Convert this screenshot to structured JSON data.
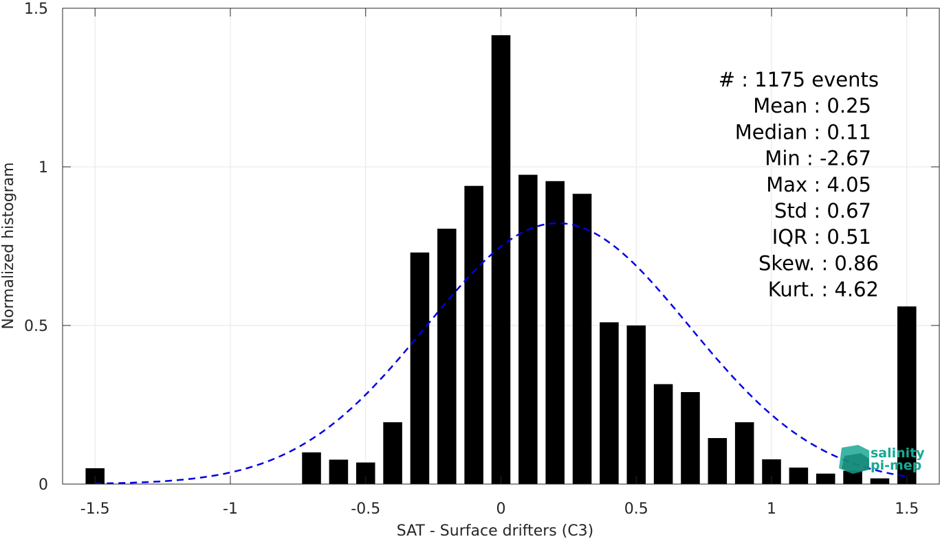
{
  "chart_data": {
    "type": "bar",
    "xlabel": "SAT - Surface drifters (C3)",
    "ylabel": "Normalized histogram",
    "xlim": [
      -1.62,
      1.62
    ],
    "ylim": [
      0,
      1.5
    ],
    "xticks": [
      -1.5,
      -1,
      -0.5,
      0,
      0.5,
      1,
      1.5
    ],
    "xtick_labels": [
      "-1.5",
      "-1",
      "-0.5",
      "0",
      "0.5",
      "1",
      "1.5"
    ],
    "yticks": [
      0,
      0.5,
      1,
      1.5
    ],
    "ytick_labels": [
      "0",
      "0.5",
      "1",
      "1.5"
    ],
    "grid": true,
    "bar_color": "#000000",
    "bar_width": 0.07,
    "bins": [
      {
        "x": -1.5,
        "y": 0.05
      },
      {
        "x": -0.7,
        "y": 0.1
      },
      {
        "x": -0.6,
        "y": 0.077
      },
      {
        "x": -0.5,
        "y": 0.068
      },
      {
        "x": -0.4,
        "y": 0.195
      },
      {
        "x": -0.3,
        "y": 0.73
      },
      {
        "x": -0.2,
        "y": 0.805
      },
      {
        "x": -0.1,
        "y": 0.94
      },
      {
        "x": 0.0,
        "y": 1.415
      },
      {
        "x": 0.1,
        "y": 0.975
      },
      {
        "x": 0.2,
        "y": 0.955
      },
      {
        "x": 0.3,
        "y": 0.915
      },
      {
        "x": 0.4,
        "y": 0.51
      },
      {
        "x": 0.5,
        "y": 0.5
      },
      {
        "x": 0.6,
        "y": 0.315
      },
      {
        "x": 0.7,
        "y": 0.29
      },
      {
        "x": 0.8,
        "y": 0.145
      },
      {
        "x": 0.9,
        "y": 0.195
      },
      {
        "x": 1.0,
        "y": 0.078
      },
      {
        "x": 1.1,
        "y": 0.052
      },
      {
        "x": 1.2,
        "y": 0.033
      },
      {
        "x": 1.3,
        "y": 0.042
      },
      {
        "x": 1.4,
        "y": 0.018
      },
      {
        "x": 1.5,
        "y": 0.56
      }
    ],
    "fit": {
      "type": "gaussian",
      "style": "dashed",
      "color": "#0000e6",
      "mean": 0.21,
      "std": 0.485,
      "x_range": [
        -1.5,
        1.5
      ]
    },
    "stats": [
      {
        "label": "#  : 1175 events"
      },
      {
        "label": "Mean : 0.25"
      },
      {
        "label": "Median : 0.11"
      },
      {
        "label": "Min : -2.67"
      },
      {
        "label": "Max : 4.05"
      },
      {
        "label": "Std : 0.67"
      },
      {
        "label": "IQR : 0.51"
      },
      {
        "label": "Skew. : 0.86"
      },
      {
        "label": "Kurt. : 4.62"
      }
    ]
  },
  "logo": {
    "line1": "salinity",
    "line2": "pi-mep",
    "color": "#1aa894"
  }
}
